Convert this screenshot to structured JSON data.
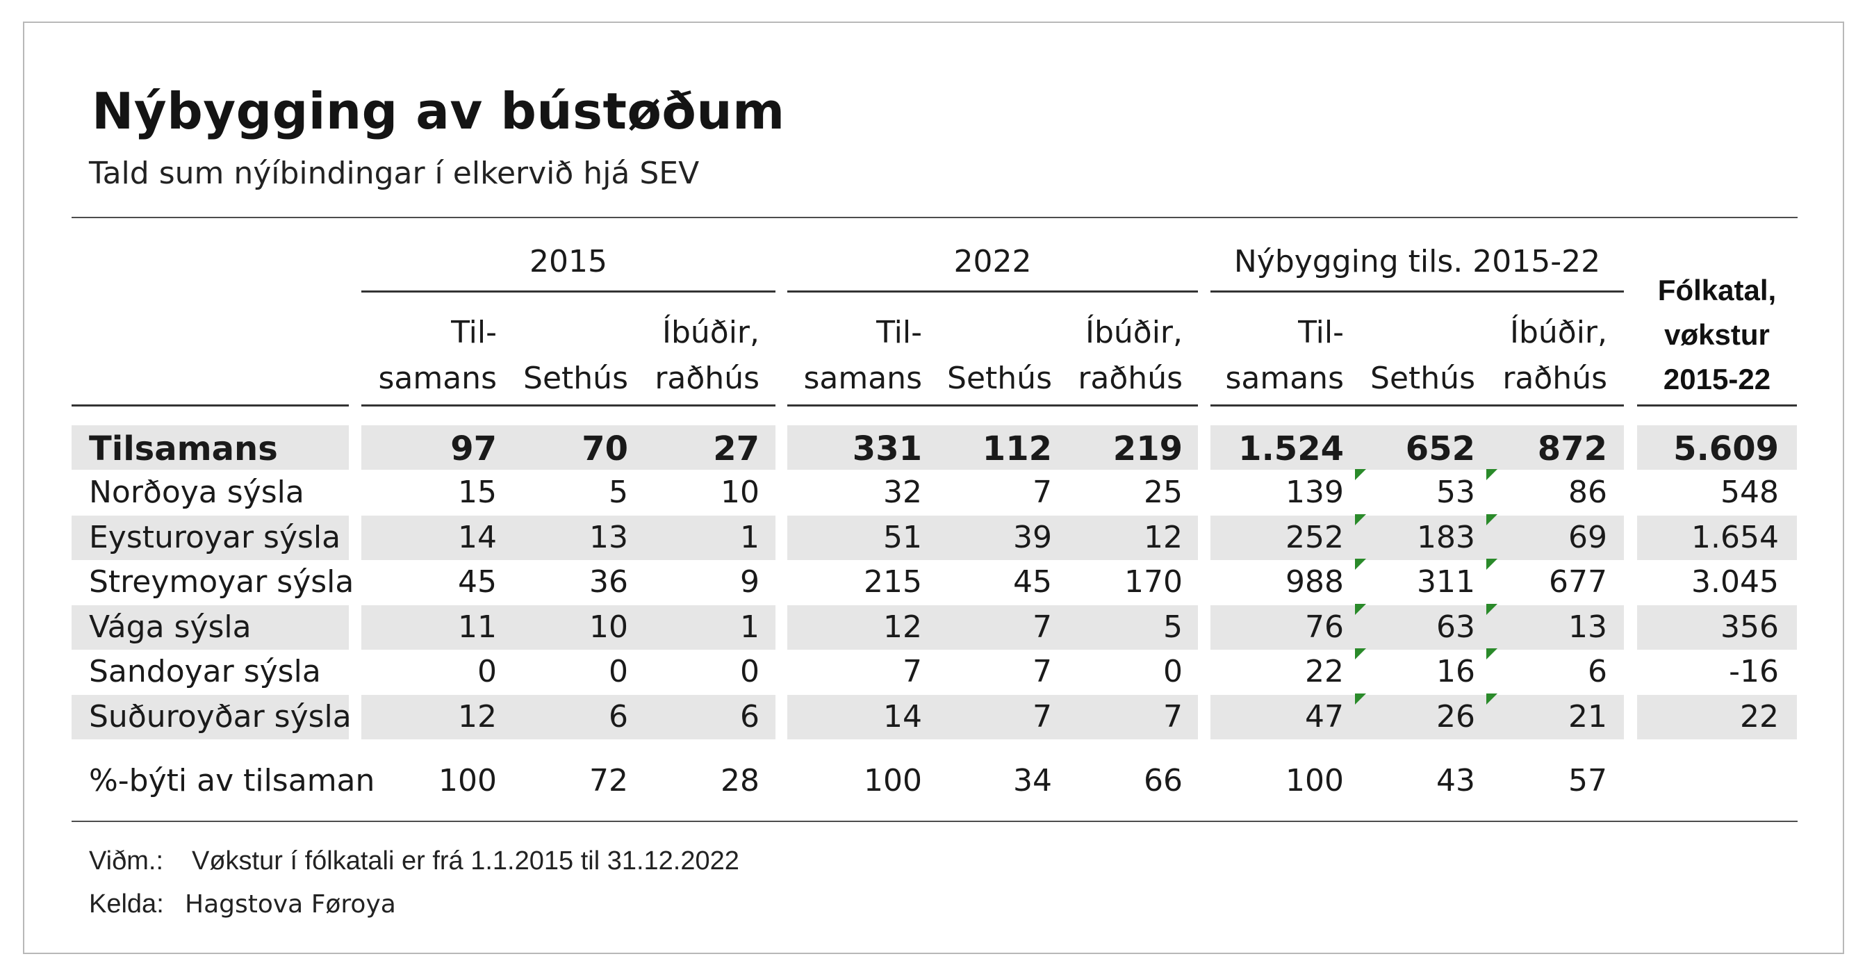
{
  "title": "Nýbygging av bústøðum",
  "subtitle": "Tald sum nýíbindingar í elkervið hjá SEV",
  "groups": [
    "2015",
    "2022",
    "Nýbygging tils. 2015-22"
  ],
  "subheaders": [
    [
      "Til-",
      "samans"
    ],
    [
      "",
      "Sethús"
    ],
    [
      "Íbúðir,",
      "raðhús"
    ]
  ],
  "folkatal_header": [
    "Fólkatal,",
    "vøkstur",
    "2015-22"
  ],
  "rows": [
    {
      "label": "Tilsamans",
      "values": [
        "97",
        "70",
        "27",
        "331",
        "112",
        "219",
        "1.524",
        "652",
        "872",
        "5.609"
      ],
      "bold": true,
      "shaded": true
    },
    {
      "label": "Norðoya sýsla",
      "values": [
        "15",
        "5",
        "10",
        "32",
        "7",
        "25",
        "139",
        "53",
        "86",
        "548"
      ],
      "shaded": false
    },
    {
      "label": "Eysturoyar sýsla",
      "values": [
        "14",
        "13",
        "1",
        "51",
        "39",
        "12",
        "252",
        "183",
        "69",
        "1.654"
      ],
      "shaded": true
    },
    {
      "label": "Streymoyar sýsla",
      "values": [
        "45",
        "36",
        "9",
        "215",
        "45",
        "170",
        "988",
        "311",
        "677",
        "3.045"
      ],
      "shaded": false
    },
    {
      "label": "Vága sýsla",
      "values": [
        "11",
        "10",
        "1",
        "12",
        "7",
        "5",
        "76",
        "63",
        "13",
        "356"
      ],
      "shaded": true
    },
    {
      "label": "Sandoyar sýsla",
      "values": [
        "0",
        "0",
        "0",
        "7",
        "7",
        "0",
        "22",
        "16",
        "6",
        "-16"
      ],
      "shaded": false
    },
    {
      "label": "Suðuroyðar sýsla",
      "values": [
        "12",
        "6",
        "6",
        "14",
        "7",
        "7",
        "47",
        "26",
        "21",
        "22"
      ],
      "shaded": true
    }
  ],
  "share_row": {
    "label": "%-býti av tilsaman",
    "values": [
      "100",
      "72",
      "28",
      "100",
      "34",
      "66",
      "100",
      "43",
      "57",
      ""
    ]
  },
  "note": {
    "label": "Viðm.:",
    "text": "Vøkstur í fólkatali er frá 1.1.2015 til 31.12.2022"
  },
  "source": {
    "label": "Kelda:",
    "text": "Hagstova Føroya"
  },
  "colors": {
    "row_shade": "#e6e6e6",
    "marker": "#2a8a2a",
    "rule": "#4d4d4d"
  }
}
